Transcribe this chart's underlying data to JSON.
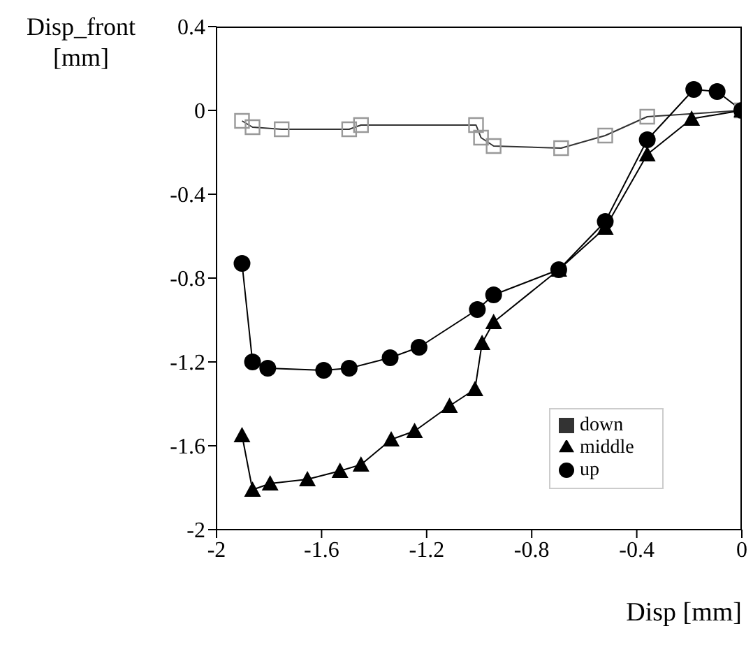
{
  "chart_data": {
    "type": "line",
    "xlabel": "Disp [mm]",
    "ylabel": "Disp_front [mm]",
    "xlim": [
      -2,
      0
    ],
    "xticks": [
      -2,
      -1.6,
      -1.2,
      -0.8,
      -0.4,
      0
    ],
    "ylim": [
      -2,
      0.4
    ],
    "yticks": [
      -2,
      -1.6,
      -1.2,
      -0.8,
      -0.4,
      0,
      0.4
    ],
    "grid": false,
    "legend": "bottom right",
    "line_style": "solid",
    "series": [
      {
        "name": "down",
        "color": "#333333",
        "marker": "square",
        "x": [
          -1.903,
          -1.863,
          -1.752,
          -1.495,
          -1.45,
          -1.012,
          -0.993,
          -0.945,
          -0.688,
          -0.52,
          -0.36,
          0
        ],
        "values": [
          -0.05,
          -0.08,
          -0.09,
          -0.09,
          -0.07,
          -0.07,
          -0.13,
          -0.17,
          -0.18,
          -0.12,
          -0.03,
          0
        ]
      },
      {
        "name": "middle",
        "color": "#000000",
        "marker": "triangle",
        "x": [
          -1.903,
          -1.863,
          -1.796,
          -1.654,
          -1.53,
          -1.45,
          -1.335,
          -1.246,
          -1.113,
          -1.016,
          -0.989,
          -0.945,
          -0.697,
          -0.52,
          -0.36,
          -0.191,
          0
        ],
        "values": [
          -1.55,
          -1.81,
          -1.78,
          -1.76,
          -1.72,
          -1.69,
          -1.57,
          -1.53,
          -1.41,
          -1.33,
          -1.11,
          -1.01,
          -0.76,
          -0.56,
          -0.21,
          -0.04,
          0
        ]
      },
      {
        "name": "up",
        "color": "#000000",
        "marker": "circle",
        "x": [
          -1.903,
          -1.863,
          -1.805,
          -1.592,
          -1.495,
          -1.339,
          -1.229,
          -1.007,
          -0.945,
          -0.697,
          -0.52,
          -0.36,
          -0.183,
          -0.094,
          0
        ],
        "values": [
          -0.73,
          -1.2,
          -1.23,
          -1.24,
          -1.23,
          -1.18,
          -1.13,
          -0.95,
          -0.88,
          -0.76,
          -0.53,
          -0.14,
          0.1,
          0.09,
          0
        ]
      }
    ]
  }
}
